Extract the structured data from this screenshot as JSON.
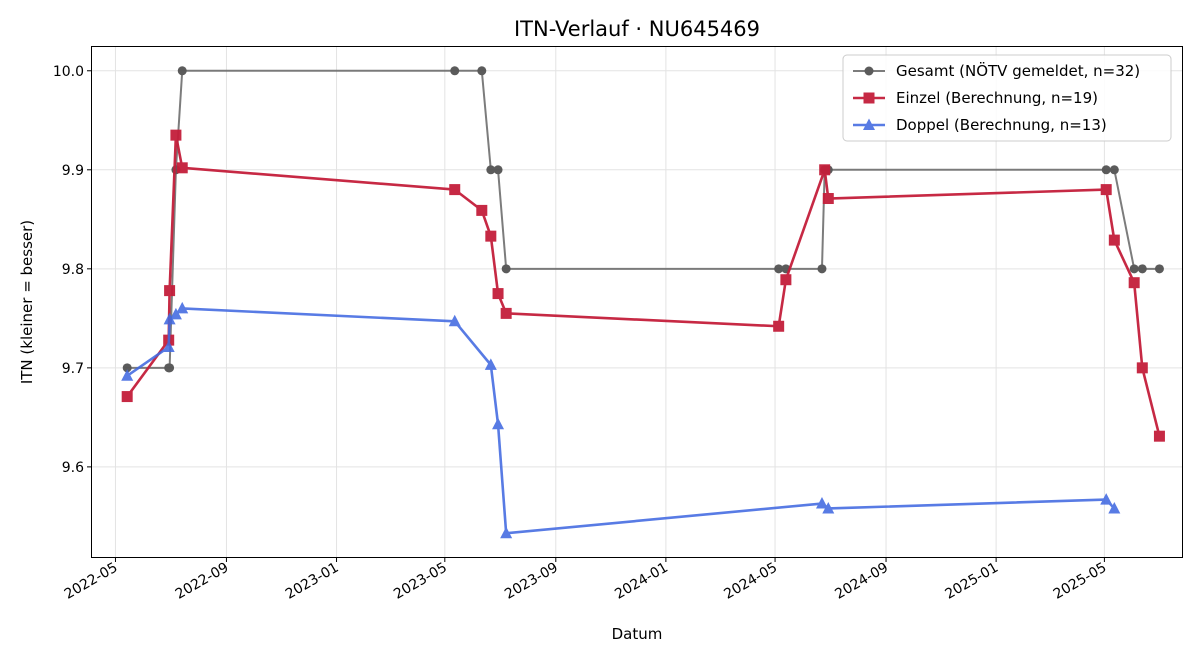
{
  "chart_data": {
    "type": "line",
    "title": "ITN-Verlauf · NU645469",
    "xlabel": "Datum",
    "ylabel": "ITN  (kleiner = besser)",
    "x_ticks": [
      "2022-05",
      "2022-09",
      "2023-01",
      "2023-05",
      "2023-09",
      "2024-01",
      "2024-05",
      "2024-09",
      "2025-01",
      "2025-05"
    ],
    "y_ticks": [
      "9.6",
      "9.7",
      "9.8",
      "9.9",
      "10.0"
    ],
    "xlim": [
      "2022-04-05",
      "2025-07-26"
    ],
    "ylim": [
      9.509,
      10.024
    ],
    "grid": true,
    "legend_position": "top-right",
    "series": [
      {
        "name": "Gesamt (NÖTV gemeldet, n=32)",
        "color": "#666666",
        "marker": "circle",
        "points": [
          [
            "2022-05-14",
            9.7
          ],
          [
            "2022-06-29",
            9.7
          ],
          [
            "2022-06-30",
            9.7
          ],
          [
            "2022-07-07",
            9.9
          ],
          [
            "2022-07-14",
            10.0
          ],
          [
            "2023-05-12",
            10.0
          ],
          [
            "2023-06-11",
            10.0
          ],
          [
            "2023-06-21",
            9.9
          ],
          [
            "2023-06-29",
            9.9
          ],
          [
            "2023-07-08",
            9.8
          ],
          [
            "2024-05-05",
            9.8
          ],
          [
            "2024-05-13",
            9.8
          ],
          [
            "2024-06-22",
            9.8
          ],
          [
            "2024-06-25",
            9.9
          ],
          [
            "2024-06-29",
            9.9
          ],
          [
            "2025-05-03",
            9.9
          ],
          [
            "2025-05-12",
            9.9
          ],
          [
            "2025-06-03",
            9.8
          ],
          [
            "2025-06-12",
            9.8
          ],
          [
            "2025-07-01",
            9.8
          ]
        ]
      },
      {
        "name": "Einzel (Berechnung, n=19)",
        "color": "#c41e3a",
        "marker": "square",
        "points": [
          [
            "2022-05-14",
            9.671
          ],
          [
            "2022-06-29",
            9.728
          ],
          [
            "2022-06-30",
            9.778
          ],
          [
            "2022-07-07",
            9.935
          ],
          [
            "2022-07-14",
            9.902
          ],
          [
            "2023-05-12",
            9.88
          ],
          [
            "2023-06-11",
            9.859
          ],
          [
            "2023-06-21",
            9.833
          ],
          [
            "2023-06-29",
            9.775
          ],
          [
            "2023-07-08",
            9.755
          ],
          [
            "2024-05-05",
            9.742
          ],
          [
            "2024-05-13",
            9.789
          ],
          [
            "2024-06-25",
            9.9
          ],
          [
            "2024-06-29",
            9.871
          ],
          [
            "2025-05-03",
            9.88
          ],
          [
            "2025-05-12",
            9.829
          ],
          [
            "2025-06-03",
            9.786
          ],
          [
            "2025-06-12",
            9.7
          ],
          [
            "2025-07-01",
            9.631
          ]
        ]
      },
      {
        "name": "Doppel (Berechnung, n=13)",
        "color": "#4169e1",
        "marker": "triangle",
        "points": [
          [
            "2022-05-14",
            9.692
          ],
          [
            "2022-06-29",
            9.721
          ],
          [
            "2022-06-30",
            9.749
          ],
          [
            "2022-07-07",
            9.754
          ],
          [
            "2022-07-14",
            9.76
          ],
          [
            "2023-05-12",
            9.747
          ],
          [
            "2023-06-21",
            9.703
          ],
          [
            "2023-06-29",
            9.643
          ],
          [
            "2023-07-08",
            9.533
          ],
          [
            "2024-06-22",
            9.563
          ],
          [
            "2024-06-29",
            9.558
          ],
          [
            "2025-05-03",
            9.567
          ],
          [
            "2025-05-12",
            9.558
          ]
        ]
      }
    ]
  }
}
